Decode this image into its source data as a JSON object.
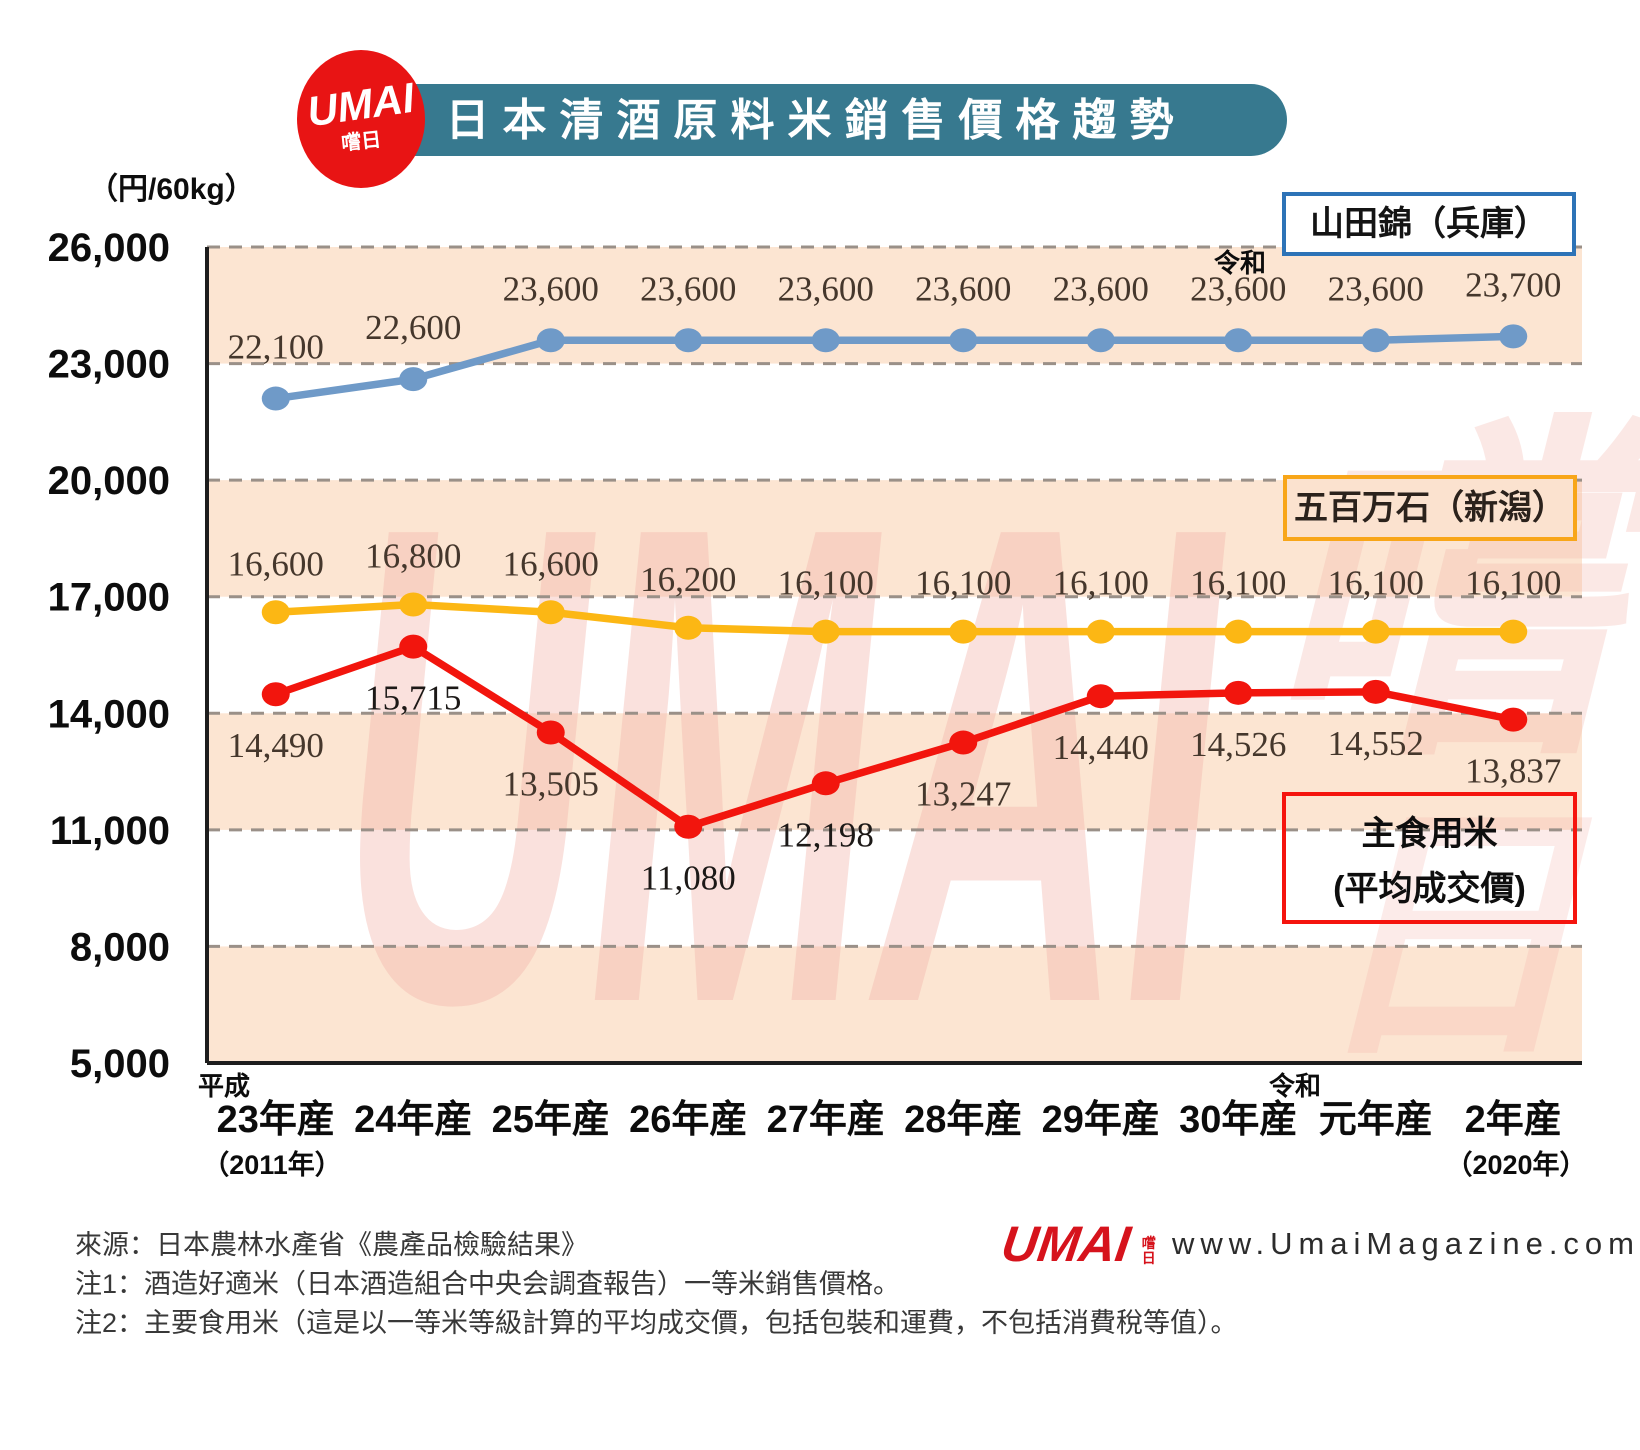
{
  "header": {
    "title": "日本清酒原料米銷售價格趨勢",
    "unit_label": "（円/60kg）",
    "logo": {
      "text": "UMAI",
      "subtext": "嚐日"
    },
    "banner_color": "#37798f",
    "logo_color": "#e81414"
  },
  "chart_data": {
    "type": "line",
    "title": "日本清酒原料米銷售價格趨勢",
    "x_categories": [
      "23年産",
      "24年産",
      "25年産",
      "26年産",
      "27年産",
      "28年産",
      "29年産",
      "30年産",
      "元年産",
      "2年産"
    ],
    "x_axis_era_labels": {
      "start": "平成",
      "change": "令和"
    },
    "x_axis_sub_labels": {
      "first": "（2011年）",
      "last": "（2020年）"
    },
    "top_era_annotation": "令和",
    "ylim": [
      5000,
      26000
    ],
    "ytick_step": 3000,
    "ytick_labels": [
      "26,000",
      "23,000",
      "20,000",
      "17,000",
      "14,000",
      "11,000",
      "8,000",
      "5,000"
    ],
    "grid": true,
    "band_fill": "#fce5d2",
    "grid_color": "#9a9088",
    "axis_color": "#1d1d1d",
    "label_color": "#45372c",
    "series": [
      {
        "name": "山田錦（兵庫）",
        "color": "#6f9ac8",
        "values": [
          22100,
          22600,
          23600,
          23600,
          23600,
          23600,
          23600,
          23600,
          23600,
          23700
        ]
      },
      {
        "name": "五百万石（新潟）",
        "color": "#fcb714",
        "values": [
          16600,
          16800,
          16600,
          16200,
          16100,
          16100,
          16100,
          16100,
          16100,
          16100
        ]
      },
      {
        "name": "主食用米（平均成交價）",
        "color": "#f2150d",
        "values": [
          14490,
          15715,
          13505,
          11080,
          12198,
          13247,
          14440,
          14526,
          14552,
          13837
        ]
      }
    ]
  },
  "legends": {
    "yamadanishiki": {
      "label": "山田錦（兵庫）",
      "border_color": "#2d73b7"
    },
    "gohyakumangoku": {
      "label": "五百万石（新潟）",
      "border_color": "#f8a619"
    },
    "staple_rice": {
      "label_line1": "主食用米",
      "label_line2": "(平均成交價)",
      "border_color": "#f5140e"
    }
  },
  "footer": {
    "source_line": "來源：日本農林水產省《農產品檢驗結果》",
    "note1": "注1：酒造好適米（日本酒造組合中央会調査報告）一等米銷售價格。",
    "note2": "注2：主要食用米（這是以一等米等級計算的平均成交價，包括包裝和運費，不包括消費稅等值）。",
    "brand": {
      "logo_text": "UMAI",
      "logo_subtext": "嚐日",
      "website": "www.UmaiMagazine.com"
    }
  },
  "watermark": {
    "text": "UMAI",
    "glyph1": "嚐",
    "glyph2": "日"
  }
}
